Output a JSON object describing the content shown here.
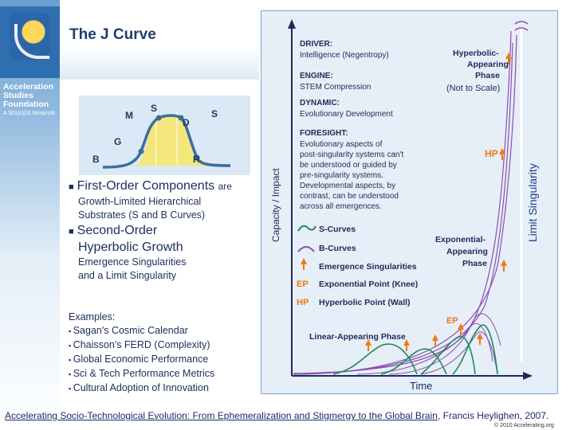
{
  "org": {
    "name_line1": "Acceleration",
    "name_line2": "Studies",
    "name_line3": "Foundation",
    "subtitle": "A 501(c)(3) Nonprofit"
  },
  "title": "The J Curve",
  "inset": {
    "labels": {
      "B": "B",
      "G": "G",
      "M": "M",
      "S": "S",
      "D": "D",
      "S2": "S",
      "R": "R"
    }
  },
  "bullets": {
    "first_main": "First-Order Components",
    "first_tail": "are",
    "first_sub1": "Growth-Limited Hierarchical",
    "first_sub2": "Substrates (S and B Curves)",
    "second_main1": "Second-Order",
    "second_main2": "Hyperbolic Growth",
    "second_sub1": "Emergence Singularities",
    "second_sub2": "and a Limit Singularity"
  },
  "examples": {
    "heading": "Examples:",
    "items": [
      "Sagan's Cosmic Calendar",
      "Chaisson's FERD (Complexity)",
      "Global Economic Performance",
      "Sci & Tech Performance Metrics",
      "Cultural Adoption of Innovation"
    ]
  },
  "figure": {
    "y_axis": "Capacity / Impact",
    "x_axis": "Time",
    "limit": "Limit Singularity",
    "driver_label": "DRIVER:",
    "driver_text": "Intelligence (Negentropy)",
    "engine_label": "ENGINE:",
    "engine_text": "STEM Compression",
    "dynamic_label": "DYNAMIC:",
    "dynamic_text": "Evolutionary Development",
    "foresight_label": "FORESIGHT:",
    "foresight_lines": [
      "Evolutionary aspects of",
      "post-singularity systems can't",
      "be understood or guided by",
      "pre-singularity systems.",
      "Developmental aspects, by",
      "contrast, can be understood",
      "across all emergences."
    ],
    "hyper_phase": [
      "Hyperbolic-",
      "Appearing",
      "Phase",
      "(Not to Scale)"
    ],
    "hp": "HP",
    "ep": "EP",
    "exp_phase": [
      "Exponential-",
      "Appearing",
      "Phase"
    ],
    "linear_phase": "Linear-Appearing Phase",
    "legend": [
      {
        "key": "s",
        "label": "S-Curves"
      },
      {
        "key": "b",
        "label": "B-Curves"
      },
      {
        "key": "arrow",
        "label": "Emergence Singularities"
      },
      {
        "key": "EP",
        "label": "Exponential Point (Knee)"
      },
      {
        "key": "HP",
        "label": "Hyperbolic Point (Wall)"
      }
    ]
  },
  "citation": {
    "link_text": "Accelerating Socio-Technological Evolution: From Ephemeralization and Stigmergy to the Global Brain",
    "tail": ", Francis Heylighen, 2007."
  },
  "copyright": "© 2010 Accelerating.org",
  "colors": {
    "title": "#1e3f6e",
    "s_curve": "#1e8a5a",
    "b_curve": "#8a4fb0",
    "arrow": "#f07a12",
    "navy": "#1a2a6a"
  }
}
